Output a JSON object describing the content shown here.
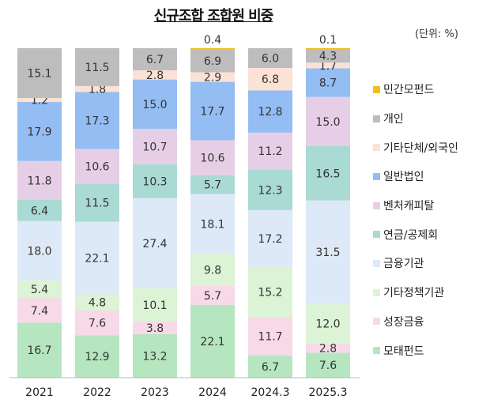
{
  "chart_data": {
    "type": "bar",
    "stacked": true,
    "title": "신규조합 조합원 비중",
    "unit_label": "(단위: %)",
    "categories": [
      "2021",
      "2022",
      "2023",
      "2024",
      "2024.3",
      "2025.3"
    ],
    "legend_position": "right",
    "grid": false,
    "series": [
      {
        "name": "모태펀드",
        "color": "#b5e6bf",
        "values": [
          16.7,
          12.9,
          13.2,
          22.1,
          6.7,
          7.6
        ]
      },
      {
        "name": "성장금융",
        "color": "#f7d9e8",
        "values": [
          7.4,
          7.6,
          3.8,
          5.7,
          11.7,
          2.8
        ]
      },
      {
        "name": "기타정책기관",
        "color": "#dcf3d5",
        "values": [
          5.4,
          4.8,
          10.1,
          9.8,
          15.2,
          12.0
        ]
      },
      {
        "name": "금융기관",
        "color": "#dde9f6",
        "values": [
          18.0,
          22.1,
          27.4,
          18.1,
          17.2,
          31.5
        ]
      },
      {
        "name": "연금/공제회",
        "color": "#a9dad3",
        "values": [
          6.4,
          11.5,
          10.3,
          5.7,
          12.3,
          16.5
        ]
      },
      {
        "name": "벤처캐피탈",
        "color": "#e6cfe6",
        "values": [
          11.8,
          10.6,
          10.7,
          10.6,
          11.2,
          15.0
        ]
      },
      {
        "name": "일반법인",
        "color": "#93bdf3",
        "values": [
          17.9,
          17.3,
          15.0,
          17.7,
          12.8,
          8.7
        ]
      },
      {
        "name": "기타단체/외국인",
        "color": "#fbe2d5",
        "values": [
          1.2,
          1.8,
          2.8,
          2.9,
          6.8,
          1.7
        ]
      },
      {
        "name": "개인",
        "color": "#bdbdbd",
        "values": [
          15.1,
          11.5,
          6.7,
          6.9,
          6.0,
          4.3
        ]
      },
      {
        "name": "민간모펀드",
        "color": "#f5be1a",
        "values": [
          null,
          null,
          null,
          0.4,
          null,
          0.1
        ]
      }
    ]
  }
}
